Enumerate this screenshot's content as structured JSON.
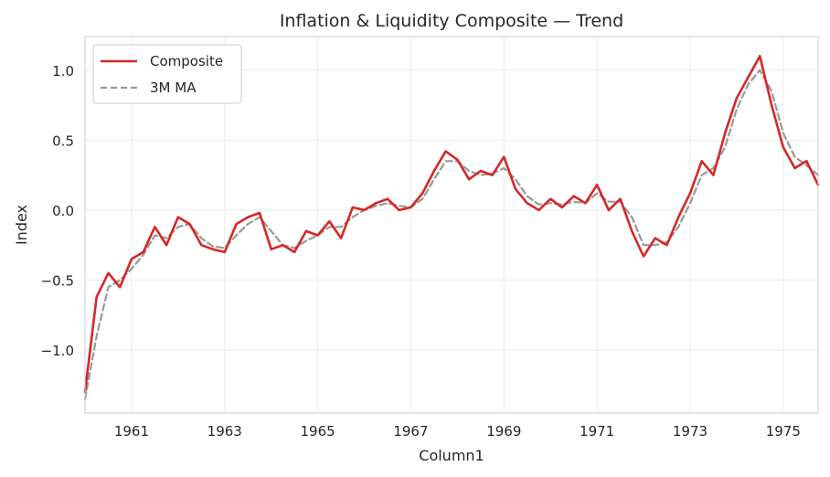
{
  "chart_data": {
    "type": "line",
    "title": "Inflation & Liquidity Composite — Trend",
    "xlabel": "Column1",
    "ylabel": "Index",
    "xlim": [
      "1960-01",
      "1975-10"
    ],
    "ylim": [
      -1.45,
      1.24
    ],
    "xticks": [
      "1961",
      "1963",
      "1965",
      "1967",
      "1969",
      "1971",
      "1973",
      "1975"
    ],
    "yticks": [
      1.0,
      0.5,
      0.0,
      -0.5,
      -1.0
    ],
    "ytick_labels": [
      "1.0",
      "0.5",
      "0.0",
      "−0.5",
      "−1.0"
    ],
    "grid": true,
    "legend": "top-left",
    "x": [
      "1960-01",
      "1960-04",
      "1960-07",
      "1960-10",
      "1961-01",
      "1961-04",
      "1961-07",
      "1961-10",
      "1962-01",
      "1962-04",
      "1962-07",
      "1962-10",
      "1963-01",
      "1963-04",
      "1963-07",
      "1963-10",
      "1964-01",
      "1964-04",
      "1964-07",
      "1964-10",
      "1965-01",
      "1965-04",
      "1965-07",
      "1965-10",
      "1966-01",
      "1966-04",
      "1966-07",
      "1966-10",
      "1967-01",
      "1967-04",
      "1967-07",
      "1967-10",
      "1968-01",
      "1968-04",
      "1968-07",
      "1968-10",
      "1969-01",
      "1969-04",
      "1969-07",
      "1969-10",
      "1970-01",
      "1970-04",
      "1970-07",
      "1970-10",
      "1971-01",
      "1971-04",
      "1971-07",
      "1971-10",
      "1972-01",
      "1972-04",
      "1972-07",
      "1972-10",
      "1973-01",
      "1973-04",
      "1973-07",
      "1973-10",
      "1974-01",
      "1974-04",
      "1974-07",
      "1974-10",
      "1975-01",
      "1975-04",
      "1975-07",
      "1975-10"
    ],
    "series": [
      {
        "name": "Composite",
        "color": "#d62728",
        "style": "solid",
        "values": [
          -1.3,
          -0.62,
          -0.45,
          -0.55,
          -0.35,
          -0.3,
          -0.12,
          -0.25,
          -0.05,
          -0.1,
          -0.25,
          -0.28,
          -0.3,
          -0.1,
          -0.05,
          -0.02,
          -0.28,
          -0.25,
          -0.3,
          -0.15,
          -0.18,
          -0.08,
          -0.2,
          0.02,
          0.0,
          0.05,
          0.08,
          0.0,
          0.02,
          0.12,
          0.28,
          0.42,
          0.36,
          0.22,
          0.28,
          0.25,
          0.38,
          0.15,
          0.05,
          0.0,
          0.08,
          0.02,
          0.1,
          0.05,
          0.18,
          0.0,
          0.08,
          -0.15,
          -0.33,
          -0.2,
          -0.25,
          -0.05,
          0.12,
          0.35,
          0.25,
          0.55,
          0.8,
          0.95,
          1.1,
          0.75,
          0.45,
          0.3,
          0.35,
          0.18
        ]
      },
      {
        "name": "3M MA",
        "color": "#999999",
        "style": "dashed",
        "values": [
          -1.35,
          -0.9,
          -0.55,
          -0.5,
          -0.42,
          -0.32,
          -0.18,
          -0.2,
          -0.12,
          -0.1,
          -0.2,
          -0.26,
          -0.27,
          -0.18,
          -0.1,
          -0.05,
          -0.15,
          -0.25,
          -0.27,
          -0.22,
          -0.18,
          -0.12,
          -0.12,
          -0.05,
          0.0,
          0.03,
          0.05,
          0.03,
          0.02,
          0.08,
          0.22,
          0.35,
          0.35,
          0.28,
          0.25,
          0.26,
          0.3,
          0.22,
          0.1,
          0.04,
          0.05,
          0.04,
          0.06,
          0.05,
          0.12,
          0.06,
          0.06,
          -0.05,
          -0.25,
          -0.25,
          -0.23,
          -0.12,
          0.05,
          0.25,
          0.3,
          0.45,
          0.72,
          0.9,
          1.0,
          0.85,
          0.55,
          0.38,
          0.32,
          0.25
        ]
      }
    ]
  }
}
